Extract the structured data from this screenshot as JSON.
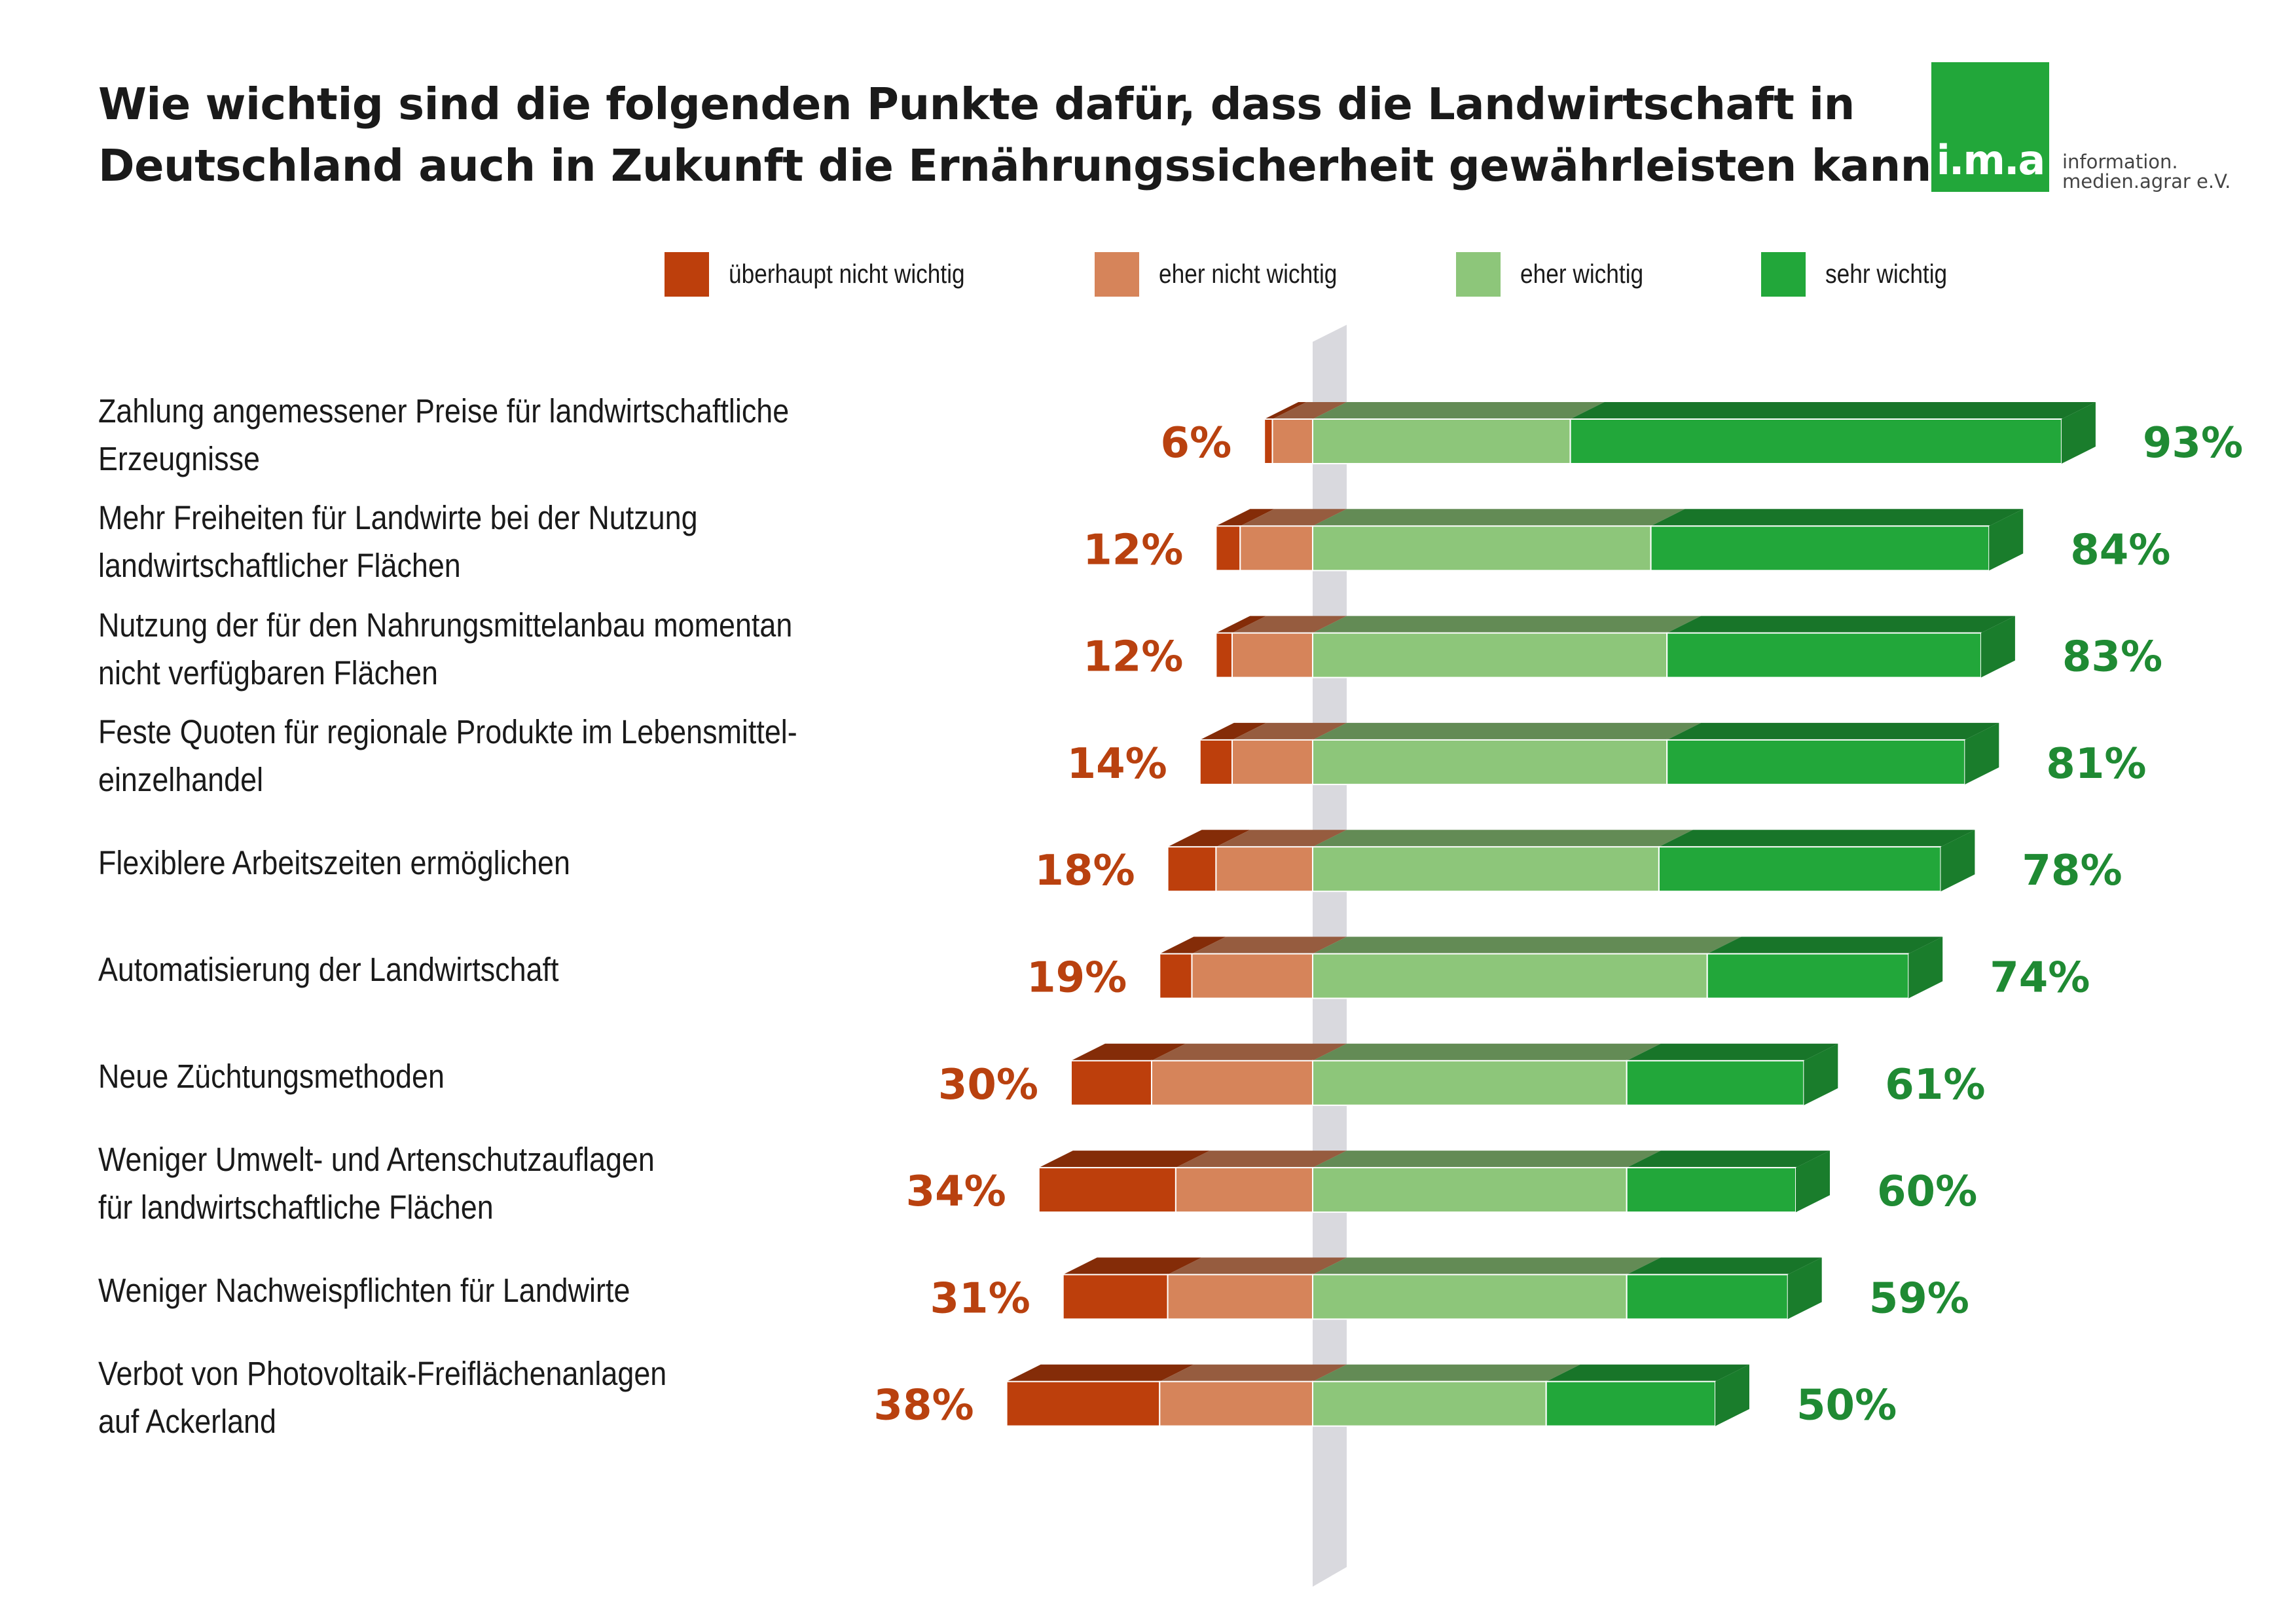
{
  "title_lines": [
    "Wie wichtig sind die folgenden Punkte dafür, dass die Landwirtschaft in",
    "Deutschland auch in Zukunft die Ernährungssicherheit gewährleisten kann?"
  ],
  "logo": {
    "mark": "i.m.a",
    "line1": "information.",
    "line2": "medien.agrar e.V."
  },
  "colors": {
    "ueberhaupt_nicht": "#bd3f0c",
    "eher_nicht": "#d6845a",
    "eher_wichtig": "#8dc67a",
    "sehr_wichtig": "#22a73a",
    "neg_label": "#b9410f",
    "pos_label": "#1f8a33",
    "axis_band": "#d9d9de"
  },
  "legend": [
    {
      "label": "überhaupt nicht wichtig",
      "color": "#bd3f0c"
    },
    {
      "label": "eher nicht wichtig",
      "color": "#d6845a"
    },
    {
      "label": "eher wichtig",
      "color": "#8dc67a"
    },
    {
      "label": "sehr wichtig",
      "color": "#22a73a"
    }
  ],
  "chart_data": {
    "type": "bar",
    "orientation": "horizontal-diverging-stacked",
    "unit": "%",
    "series": [
      {
        "name": "überhaupt nicht wichtig",
        "side": "negative",
        "values": [
          1,
          3,
          2,
          4,
          6,
          4,
          10,
          17,
          13,
          19
        ]
      },
      {
        "name": "eher nicht wichtig",
        "side": "negative",
        "values": [
          5,
          9,
          10,
          10,
          12,
          15,
          20,
          17,
          18,
          19
        ]
      },
      {
        "name": "eher wichtig",
        "side": "positive",
        "values": [
          32,
          42,
          44,
          44,
          43,
          49,
          39,
          39,
          39,
          29
        ]
      },
      {
        "name": "sehr wichtig",
        "side": "positive",
        "values": [
          61,
          42,
          39,
          37,
          35,
          25,
          22,
          21,
          20,
          21
        ]
      }
    ],
    "categories": [
      [
        "Zahlung angemessener Preise für landwirtschaftliche",
        "Erzeugnisse"
      ],
      [
        "Mehr Freiheiten für Landwirte bei der Nutzung",
        "landwirtschaftlicher Flächen"
      ],
      [
        "Nutzung der für den Nahrungsmittelanbau momentan",
        "nicht verfügbaren Flächen"
      ],
      [
        "Feste Quoten für regionale Produkte im Lebensmittel-",
        "einzelhandel"
      ],
      [
        "Flexiblere Arbeitszeiten ermöglichen"
      ],
      [
        "Automatisierung der Landwirtschaft"
      ],
      [
        "Neue Züchtungsmethoden"
      ],
      [
        "Weniger Umwelt- und Artenschutzauflagen",
        "für landwirtschaftliche Flächen"
      ],
      [
        "Weniger Nachweispflichten für Landwirte"
      ],
      [
        "Verbot von Photovoltaik-Freiflächenanlagen",
        "auf Ackerland"
      ]
    ],
    "negative_totals": [
      "6%",
      "12%",
      "12%",
      "14%",
      "18%",
      "19%",
      "30%",
      "34%",
      "31%",
      "38%"
    ],
    "positive_totals": [
      "93%",
      "84%",
      "83%",
      "81%",
      "78%",
      "74%",
      "61%",
      "60%",
      "59%",
      "50%"
    ]
  }
}
